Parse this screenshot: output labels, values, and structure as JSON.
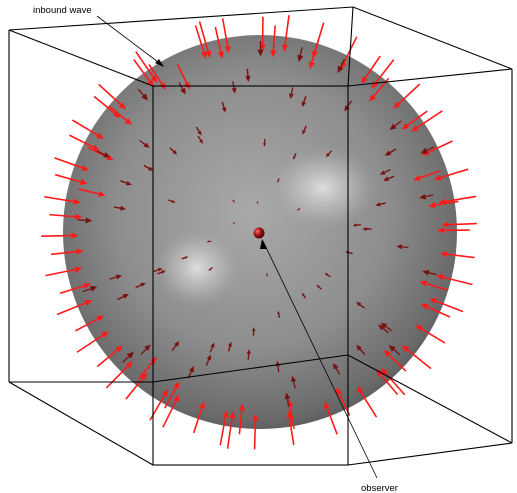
{
  "annotations": {
    "inbound": "inbound wave",
    "observer": "observer"
  },
  "colors": {
    "background": "#ffffff",
    "box_edge": "#000000",
    "sphere_light": "#dcdcdc",
    "sphere_mid": "#8c8c8c",
    "sphere_dark": "#3c3c3c",
    "arrow_outer": "#ff1a1a",
    "arrow_inner": "#7a1010",
    "observer_ball": "#a01010"
  }
}
